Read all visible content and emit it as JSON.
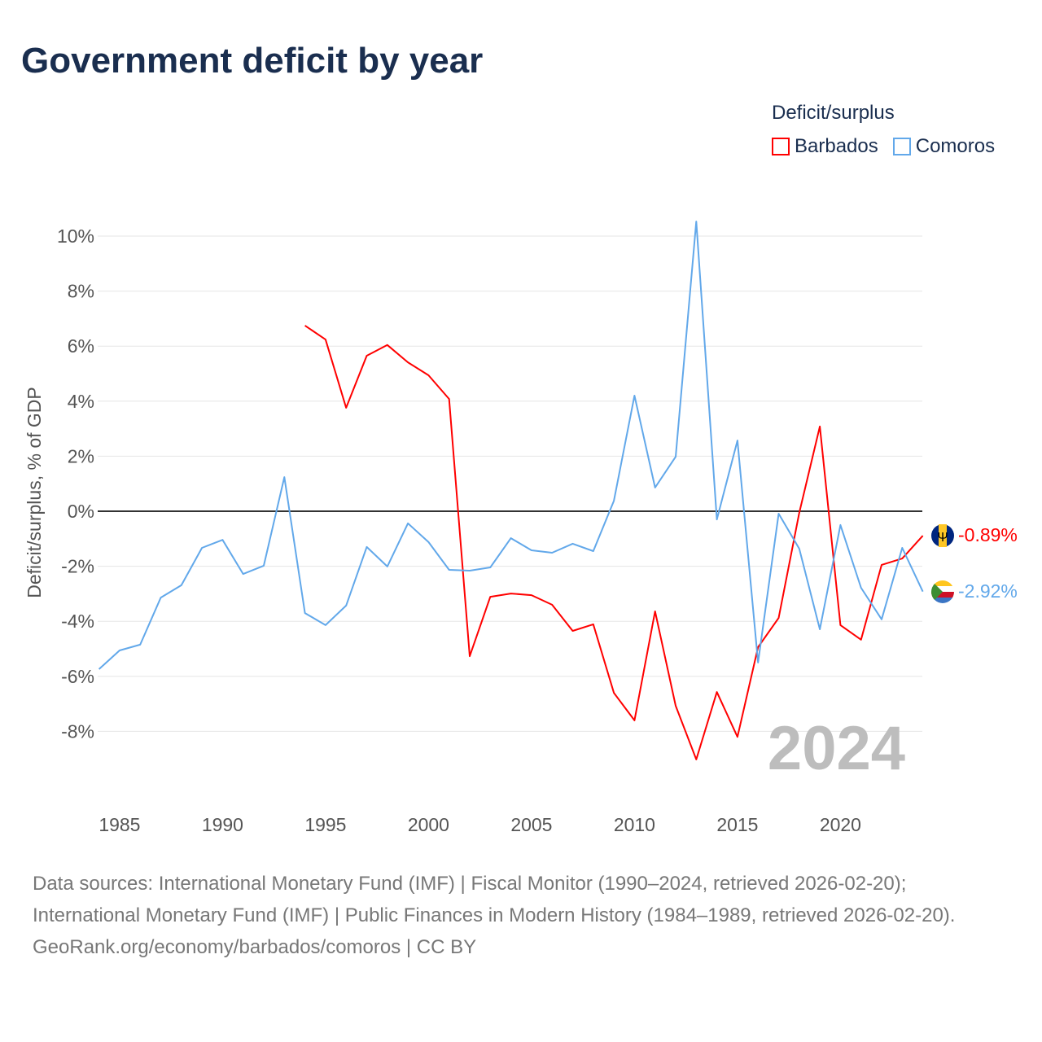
{
  "title": "Government deficit by year",
  "legend": {
    "title": "Deficit/surplus",
    "items": [
      {
        "label": "Barbados",
        "color": "#ff0000"
      },
      {
        "label": "Comoros",
        "color": "#62a8ea"
      }
    ]
  },
  "watermark_year": "2024",
  "end_labels": {
    "barbados": "-0.89%",
    "comoros": "-2.92%"
  },
  "footer": {
    "sources": "Data sources: International Monetary Fund (IMF) | Fiscal Monitor (1990–2024, retrieved 2026-02-20); International Monetary Fund (IMF) | Public Finances in Modern History (1984–1989, retrieved 2026-02-20).",
    "link": "GeoRank.org/economy/barbados/comoros | CC BY"
  },
  "chart_data": {
    "type": "line",
    "ylabel": "Deficit/surplus, % of GDP",
    "xlim": [
      1984,
      2024
    ],
    "ylim": [
      -10,
      10.5
    ],
    "x_ticks": [
      1985,
      1990,
      1995,
      2000,
      2005,
      2010,
      2015,
      2020
    ],
    "y_ticks": [
      10,
      8,
      6,
      4,
      2,
      0,
      -2,
      -4,
      -6,
      -8
    ],
    "y_tick_labels": [
      "10%",
      "8%",
      "6%",
      "4%",
      "2%",
      "0%",
      "-2%",
      "-4%",
      "-6%",
      "-8%"
    ],
    "grid": true,
    "legend_position": "top-right",
    "series": [
      {
        "name": "Barbados",
        "color": "#ff0000",
        "start": 1994,
        "values": [
          6.75,
          6.24,
          3.76,
          5.65,
          6.04,
          5.41,
          4.94,
          4.08,
          -5.27,
          -3.11,
          -2.99,
          -3.05,
          -3.4,
          -4.35,
          -4.11,
          -6.6,
          -7.6,
          -3.64,
          -7.07,
          -9.02,
          -6.57,
          -8.2,
          -4.94,
          -3.88,
          -0.06,
          3.08,
          -4.14,
          -4.67,
          -1.95,
          -1.72,
          -0.89
        ]
      },
      {
        "name": "Comoros",
        "color": "#62a8ea",
        "start": 1984,
        "values": [
          -5.74,
          -5.06,
          -4.85,
          -3.14,
          -2.69,
          -1.33,
          -1.04,
          -2.28,
          -1.98,
          1.24,
          -3.7,
          -4.14,
          -3.43,
          -1.3,
          -2.01,
          -0.44,
          -1.12,
          -2.13,
          -2.16,
          -2.04,
          -0.98,
          -1.42,
          -1.51,
          -1.18,
          -1.45,
          0.38,
          4.2,
          0.86,
          1.98,
          10.53,
          -0.3,
          2.57,
          -5.5,
          -0.09,
          -1.36,
          -4.29,
          -0.5,
          -2.78,
          -3.93,
          -1.33,
          -2.92
        ]
      }
    ]
  }
}
